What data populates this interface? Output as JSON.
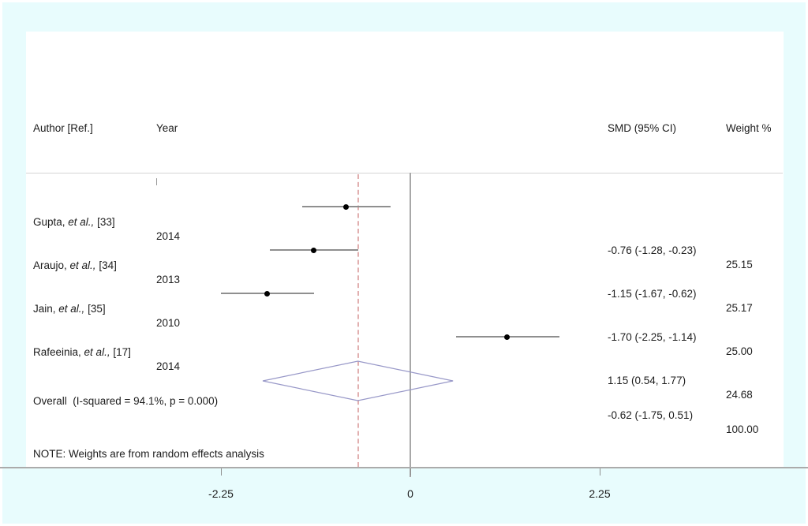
{
  "chart_data": {
    "type": "forest",
    "effect_measure": "SMD",
    "columns": [
      "Author [Ref.]",
      "Year",
      "SMD (95% CI)",
      "Weight %"
    ],
    "studies": [
      {
        "author_prefix": "Gupta, ",
        "author_italic": "et al.,",
        "author_suffix": " [33]",
        "year": "2014",
        "smd": -0.76,
        "ci_low": -1.28,
        "ci_high": -0.23,
        "smd_label": "-0.76 (-1.28, -0.23)",
        "weight": "25.15"
      },
      {
        "author_prefix": "Araujo, ",
        "author_italic": "et al.,",
        "author_suffix": " [34]",
        "year": "2013",
        "smd": -1.15,
        "ci_low": -1.67,
        "ci_high": -0.62,
        "smd_label": "-1.15 (-1.67, -0.62)",
        "weight": "25.17"
      },
      {
        "author_prefix": "Jain, ",
        "author_italic": "et al.,",
        "author_suffix": " [35]",
        "year": "2010",
        "smd": -1.7,
        "ci_low": -2.25,
        "ci_high": -1.14,
        "smd_label": "-1.70 (-2.25, -1.14)",
        "weight": "25.00"
      },
      {
        "author_prefix": "Rafeeinia, ",
        "author_italic": "et al.,",
        "author_suffix": " [17]",
        "year": "2014",
        "smd": 1.15,
        "ci_low": 0.54,
        "ci_high": 1.77,
        "smd_label": "1.15 (0.54, 1.77)",
        "weight": "24.68"
      }
    ],
    "overall": {
      "label": "Overall  (I-squared = 94.1%, p = 0.000)",
      "smd": -0.62,
      "ci_low": -1.75,
      "ci_high": 0.51,
      "smd_label": "-0.62 (-1.75, 0.51)",
      "weight": "100.00"
    },
    "note": "NOTE: Weights are from random effects analysis",
    "axis": {
      "ticks": [
        -2.25,
        0,
        2.25
      ],
      "tick_labels": [
        "-2.25",
        "0",
        "2.25"
      ],
      "zero_line": 0,
      "pooled_estimate_line": -0.62
    },
    "colors": {
      "frame": "#e8fcfd",
      "diamond_outline": "#9898c8",
      "dashed_line": "#e2b0b0",
      "ci_line": "#8f8f8f",
      "marker": "#000000",
      "zero_line": "#a8a8a8"
    }
  }
}
